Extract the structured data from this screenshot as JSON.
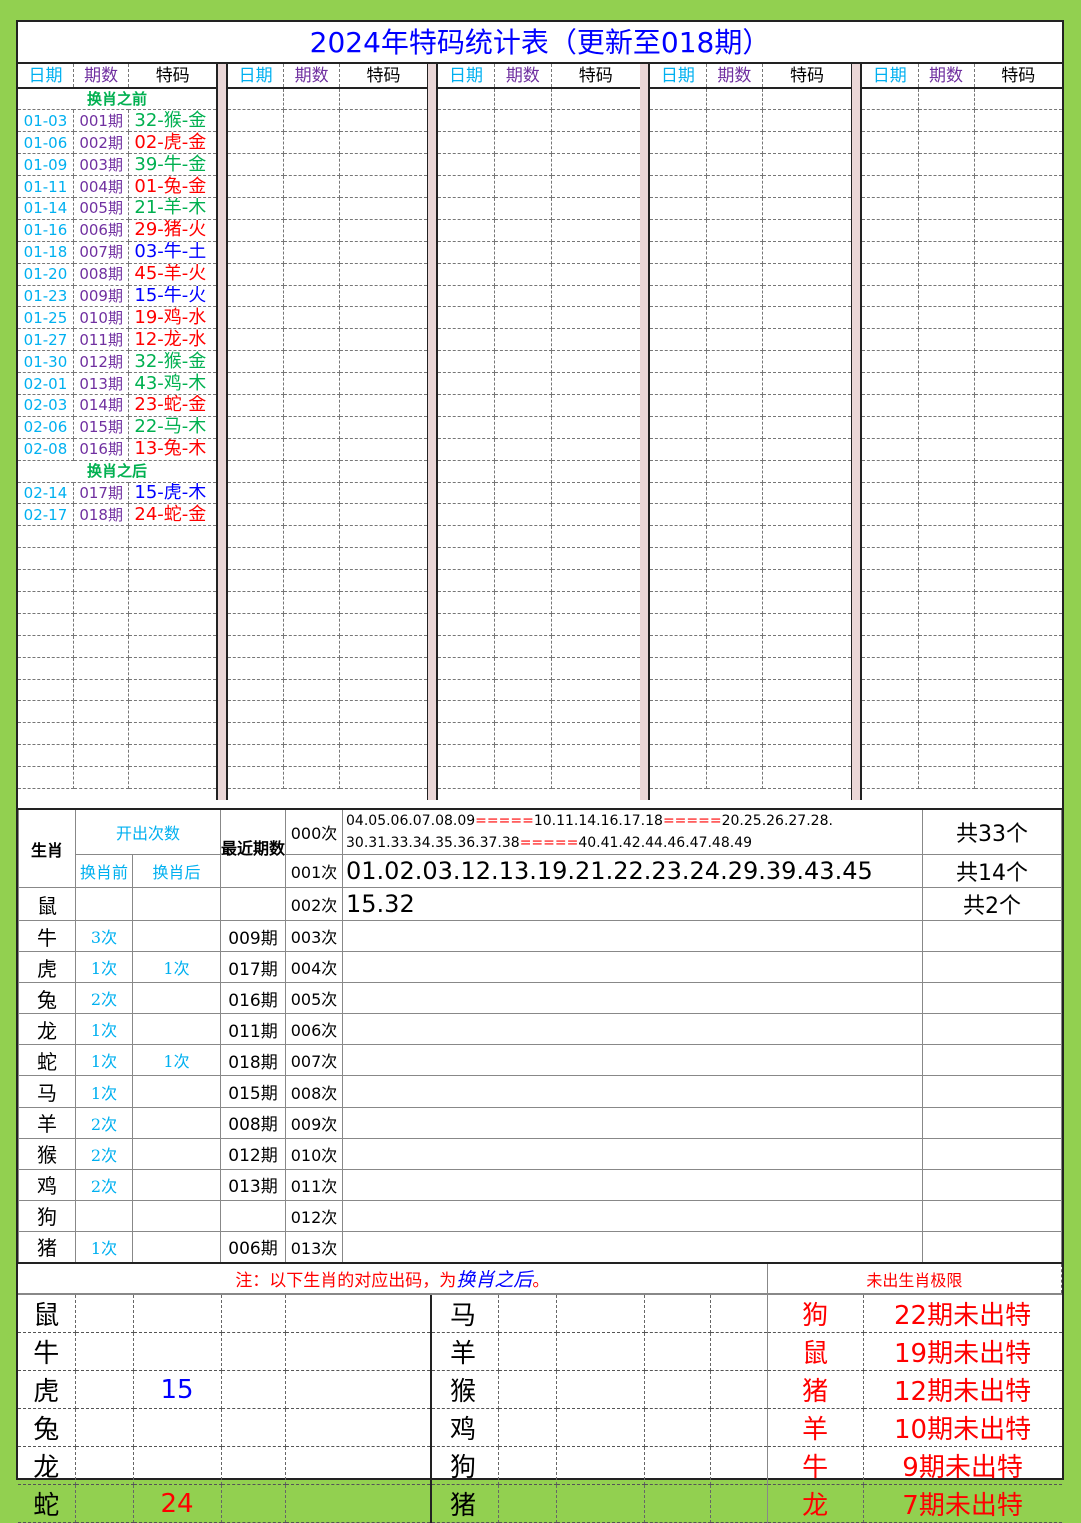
{
  "title": "2024年特码统计表（更新至018期）",
  "columns": {
    "date": "日期",
    "period": "期数",
    "code": "特码"
  },
  "groups": 5,
  "total_rows": 32,
  "colors": {
    "date": "#00b0f0",
    "period": "#7030a0",
    "green": "#00b050",
    "red": "#ff0000",
    "blue": "#0000ff",
    "frame": "#92d050"
  },
  "records": [
    {
      "section": "换肖之前"
    },
    {
      "date": "01-03",
      "period": "001期",
      "code": "32-猴-金",
      "color": "#00b050"
    },
    {
      "date": "01-06",
      "period": "002期",
      "code": "02-虎-金",
      "color": "#ff0000"
    },
    {
      "date": "01-09",
      "period": "003期",
      "code": "39-牛-金",
      "color": "#00b050"
    },
    {
      "date": "01-11",
      "period": "004期",
      "code": "01-兔-金",
      "color": "#ff0000"
    },
    {
      "date": "01-14",
      "period": "005期",
      "code": "21-羊-木",
      "color": "#00b050"
    },
    {
      "date": "01-16",
      "period": "006期",
      "code": "29-猪-火",
      "color": "#ff0000"
    },
    {
      "date": "01-18",
      "period": "007期",
      "code": "03-牛-土",
      "color": "#0000ff"
    },
    {
      "date": "01-20",
      "period": "008期",
      "code": "45-羊-火",
      "color": "#ff0000"
    },
    {
      "date": "01-23",
      "period": "009期",
      "code": "15-牛-火",
      "color": "#0000ff"
    },
    {
      "date": "01-25",
      "period": "010期",
      "code": "19-鸡-水",
      "color": "#ff0000"
    },
    {
      "date": "01-27",
      "period": "011期",
      "code": "12-龙-水",
      "color": "#ff0000"
    },
    {
      "date": "01-30",
      "period": "012期",
      "code": "32-猴-金",
      "color": "#00b050"
    },
    {
      "date": "02-01",
      "period": "013期",
      "code": "43-鸡-木",
      "color": "#00b050"
    },
    {
      "date": "02-03",
      "period": "014期",
      "code": "23-蛇-金",
      "color": "#ff0000"
    },
    {
      "date": "02-06",
      "period": "015期",
      "code": "22-马-木",
      "color": "#00b050"
    },
    {
      "date": "02-08",
      "period": "016期",
      "code": "13-兔-木",
      "color": "#ff0000"
    },
    {
      "section": "换肖之后"
    },
    {
      "date": "02-14",
      "period": "017期",
      "code": "15-虎-木",
      "color": "#0000ff"
    },
    {
      "date": "02-17",
      "period": "018期",
      "code": "24-蛇-金",
      "color": "#ff0000"
    }
  ],
  "stats": {
    "zodiac_header": "生肖",
    "count_header": "开出次数",
    "before": "换肖前",
    "after": "换肖后",
    "recent_header": "最近期数",
    "freq": [
      {
        "times": "000次",
        "numbers": "",
        "count": "共33个"
      },
      {
        "times": "001次",
        "numbers": "01.02.03.12.13.19.21.22.23.24.29.39.43.45",
        "count": "共14个"
      },
      {
        "times": "002次",
        "numbers": "15.32",
        "count": "共2个"
      },
      {
        "times": "003次"
      },
      {
        "times": "004次"
      },
      {
        "times": "005次"
      },
      {
        "times": "006次"
      },
      {
        "times": "007次"
      },
      {
        "times": "008次"
      },
      {
        "times": "009次"
      },
      {
        "times": "010次"
      },
      {
        "times": "011次"
      },
      {
        "times": "012次"
      },
      {
        "times": "013次"
      }
    ],
    "freq0_line1": [
      "04.05.06.07.08.09",
      "=====",
      "10.11.14.16.17.18",
      "=====",
      "20.25.26.27.28."
    ],
    "freq0_line2": [
      "30.31.33.34.35.36.37.38",
      "=====",
      "40.41.42.44.46.47.48.49"
    ],
    "zodiacs": [
      {
        "name": "鼠",
        "before": "",
        "after": "",
        "recent": ""
      },
      {
        "name": "牛",
        "before": "3次",
        "after": "",
        "recent": "009期"
      },
      {
        "name": "虎",
        "before": "1次",
        "after": "1次",
        "recent": "017期"
      },
      {
        "name": "兔",
        "before": "2次",
        "after": "",
        "recent": "016期"
      },
      {
        "name": "龙",
        "before": "1次",
        "after": "",
        "recent": "011期"
      },
      {
        "name": "蛇",
        "before": "1次",
        "after": "1次",
        "recent": "018期"
      },
      {
        "name": "马",
        "before": "1次",
        "after": "",
        "recent": "015期"
      },
      {
        "name": "羊",
        "before": "2次",
        "after": "",
        "recent": "008期"
      },
      {
        "name": "猴",
        "before": "2次",
        "after": "",
        "recent": "012期"
      },
      {
        "name": "鸡",
        "before": "2次",
        "after": "",
        "recent": "013期"
      },
      {
        "name": "狗",
        "before": "",
        "after": "",
        "recent": ""
      },
      {
        "name": "猪",
        "before": "1次",
        "after": "",
        "recent": "006期"
      }
    ]
  },
  "bottom": {
    "note_prefix": "注：以下生肖的对应出码，为",
    "note_em": "换肖之后",
    "note_suffix": "。",
    "limit_header": "未出生肖极限",
    "left": [
      {
        "z": "鼠",
        "v": ""
      },
      {
        "z": "牛",
        "v": ""
      },
      {
        "z": "虎",
        "v": "15",
        "color": "#0000ff"
      },
      {
        "z": "兔",
        "v": ""
      },
      {
        "z": "龙",
        "v": ""
      },
      {
        "z": "蛇",
        "v": "24",
        "color": "#ff0000"
      }
    ],
    "right": [
      "马",
      "羊",
      "猴",
      "鸡",
      "狗",
      "猪"
    ],
    "limits": [
      {
        "z": "狗",
        "t": "22期未出特"
      },
      {
        "z": "鼠",
        "t": "19期未出特"
      },
      {
        "z": "猪",
        "t": "12期未出特"
      },
      {
        "z": "羊",
        "t": "10期未出特"
      },
      {
        "z": "牛",
        "t": "9期未出特"
      },
      {
        "z": "龙",
        "t": "7期未出特"
      }
    ]
  }
}
